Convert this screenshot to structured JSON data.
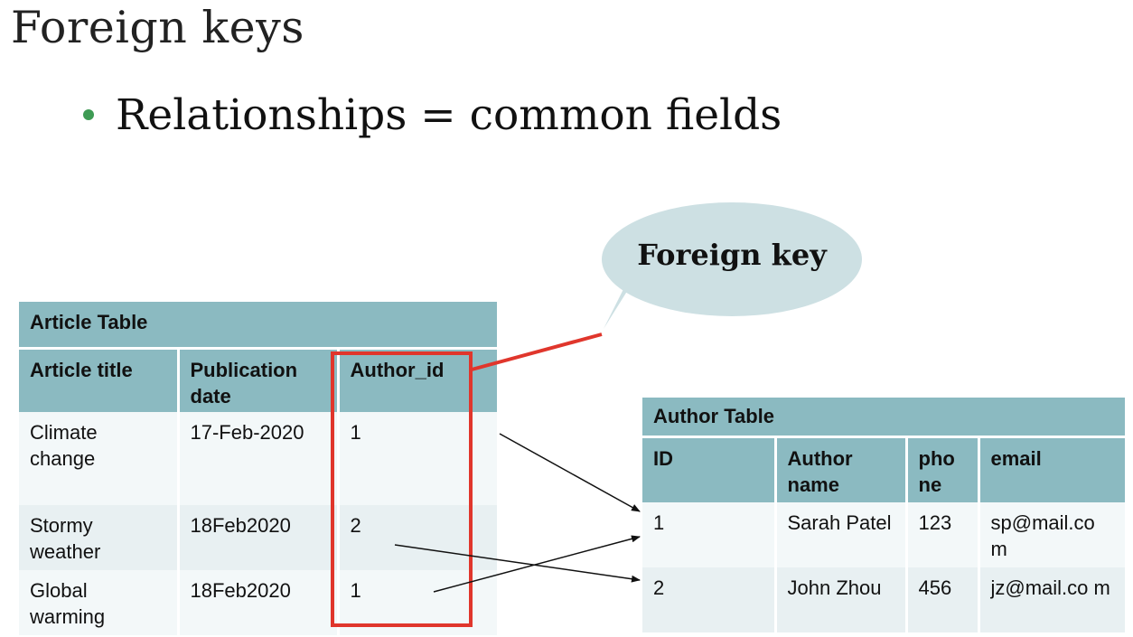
{
  "slide": {
    "title": "Foreign keys",
    "bullet": "Relationships = common fields"
  },
  "callout": {
    "label": "Foreign key"
  },
  "article_table": {
    "caption": "Article Table",
    "headers": [
      "Article title",
      "Publication date",
      "Author_id"
    ],
    "rows": [
      [
        "Climate change",
        "17-Feb-2020",
        "1"
      ],
      [
        "Stormy weather",
        "18Feb2020",
        "2"
      ],
      [
        "Global warming",
        "18Feb2020",
        "1"
      ]
    ]
  },
  "author_table": {
    "caption": "Author Table",
    "headers": [
      "ID",
      "Author name",
      "pho ne",
      "email"
    ],
    "rows": [
      [
        "1",
        "Sarah Patel",
        "123",
        "sp@mail.co m"
      ],
      [
        "2",
        "John Zhou",
        "456",
        "jz@mail.co m"
      ]
    ]
  },
  "colors": {
    "header_fill": "#8bbac1",
    "callout_fill": "#cde0e3",
    "highlight": "#e0362c",
    "bullet": "#3e9b54"
  }
}
